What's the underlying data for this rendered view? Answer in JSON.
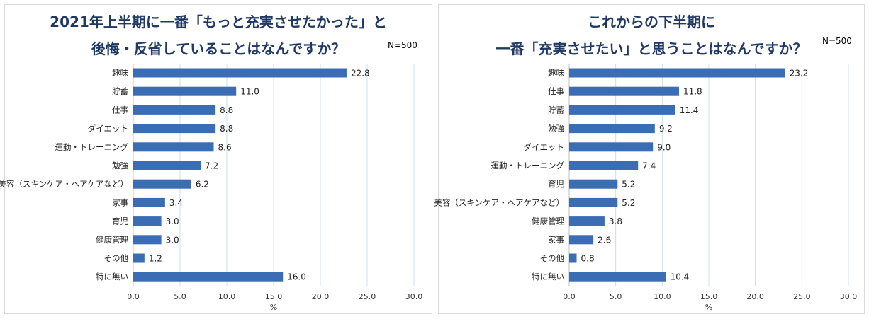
{
  "chart_data": [
    {
      "type": "bar",
      "orientation": "horizontal",
      "title_lines": [
        "2021年上半期に一番「もっと充実させたかった」と",
        "後悔・反省していることはなんですか？"
      ],
      "note": "N=500",
      "categories": [
        "趣味",
        "貯蓄",
        "仕事",
        "ダイエット",
        "運動・トレーニング",
        "勉強",
        "美容（スキンケア・ヘアケアなど）",
        "家事",
        "育児",
        "健康管理",
        "その他",
        "特に無い"
      ],
      "values": [
        22.8,
        11.0,
        8.8,
        8.8,
        8.6,
        7.2,
        6.2,
        3.4,
        3.0,
        3.0,
        1.2,
        16.0
      ],
      "value_labels": [
        "22.8",
        "11.0",
        "8.8",
        "8.8",
        "8.6",
        "7.2",
        "6.2",
        "3.4",
        "3.0",
        "3.0",
        "1.2",
        "16.0"
      ],
      "xlim": [
        0,
        30
      ],
      "xticks": [
        "0.0",
        "5.0",
        "10.0",
        "15.0",
        "20.0",
        "25.0",
        "30.0"
      ],
      "xlabel": "%",
      "grid": true,
      "bar_color": "#3b6db4"
    },
    {
      "type": "bar",
      "orientation": "horizontal",
      "title_lines": [
        "これからの下半期に",
        "一番「充実させたい」と思うことはなんですか？"
      ],
      "note": "N=500",
      "categories": [
        "趣味",
        "仕事",
        "貯蓄",
        "勉強",
        "ダイエット",
        "運動・トレーニング",
        "育児",
        "美容（スキンケア・ヘアケアなど）",
        "健康管理",
        "家事",
        "その他",
        "特に無い"
      ],
      "values": [
        23.2,
        11.8,
        11.4,
        9.2,
        9.0,
        7.4,
        5.2,
        5.2,
        3.8,
        2.6,
        0.8,
        10.4
      ],
      "value_labels": [
        "23.2",
        "11.8",
        "11.4",
        "9.2",
        "9.0",
        "7.4",
        "5.2",
        "5.2",
        "3.8",
        "2.6",
        "0.8",
        "10.4"
      ],
      "xlim": [
        0,
        30
      ],
      "xticks": [
        "0.0",
        "5.0",
        "10.0",
        "15.0",
        "20.0",
        "25.0",
        "30.0"
      ],
      "xlabel": "%",
      "grid": true,
      "bar_color": "#3b6db4"
    }
  ]
}
